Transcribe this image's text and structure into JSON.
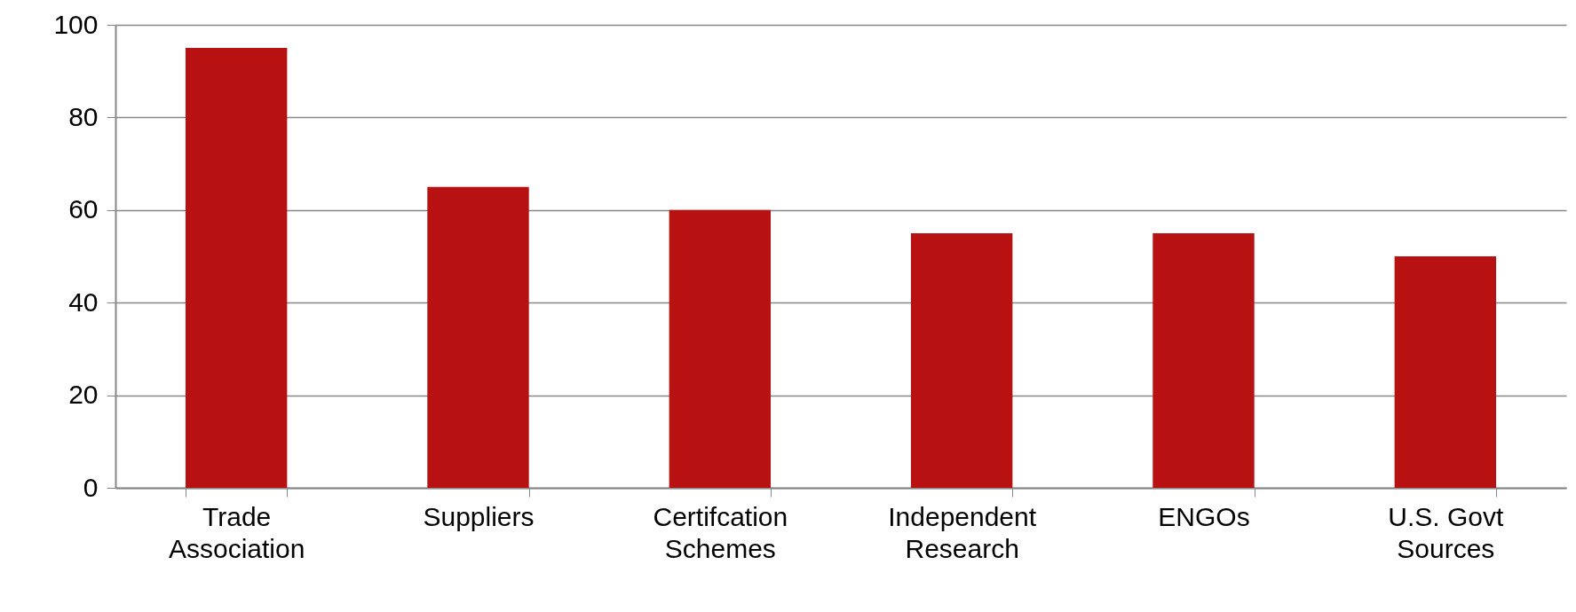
{
  "chart_data": {
    "type": "bar",
    "categories": [
      "Trade Association",
      "Suppliers",
      "Certifcation Schemes",
      "Independent Research",
      "ENGOs",
      "U.S. Govt Sources"
    ],
    "values": [
      95,
      65,
      60,
      55,
      55,
      50
    ],
    "color": "#b81111",
    "ylim": [
      0,
      100
    ],
    "yticks": [
      0,
      20,
      40,
      60,
      80,
      100
    ],
    "grid": "y"
  }
}
